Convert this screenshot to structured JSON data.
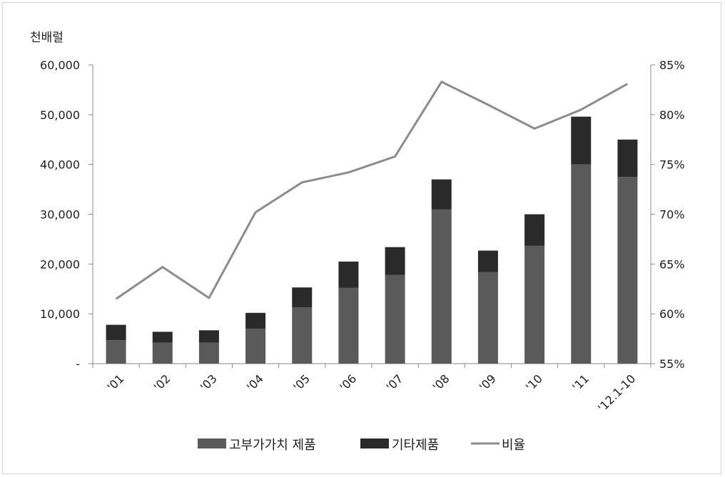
{
  "chart_data": {
    "type": "bar",
    "stacked": true,
    "unit_label": "천배럴",
    "categories": [
      "'01",
      "'02",
      "'03",
      "'04",
      "'05",
      "'06",
      "'07",
      "'08",
      "'09",
      "'10",
      "'11",
      "'12.1-10"
    ],
    "series": [
      {
        "name": "고부가가치 제품",
        "type": "bar",
        "axis": "left",
        "color": "#5a5a5a",
        "values": [
          4700,
          4200,
          4200,
          7000,
          11300,
          15200,
          17800,
          31000,
          18400,
          23700,
          40000,
          37500
        ]
      },
      {
        "name": "기타제품",
        "type": "bar",
        "axis": "left",
        "color": "#2a2a2a",
        "values": [
          3100,
          2200,
          2500,
          3200,
          4000,
          5300,
          5600,
          6000,
          4300,
          6300,
          9600,
          7500
        ]
      },
      {
        "name": "비율",
        "type": "line",
        "axis": "right",
        "color": "#8c8c8c",
        "values": [
          61.5,
          64.7,
          61.6,
          70.2,
          73.2,
          74.2,
          75.8,
          83.3,
          81.0,
          78.6,
          80.5,
          83.1
        ]
      }
    ],
    "y_left": {
      "min": 0,
      "max": 60000,
      "step": 10000,
      "tick_labels": [
        "-",
        "10,000",
        "20,000",
        "30,000",
        "40,000",
        "50,000",
        "60,000"
      ]
    },
    "y_right": {
      "min": 55,
      "max": 85,
      "step": 5,
      "tick_labels": [
        "55%",
        "60%",
        "65%",
        "70%",
        "75%",
        "80%",
        "85%"
      ]
    },
    "grid": false,
    "legend_position": "bottom"
  }
}
